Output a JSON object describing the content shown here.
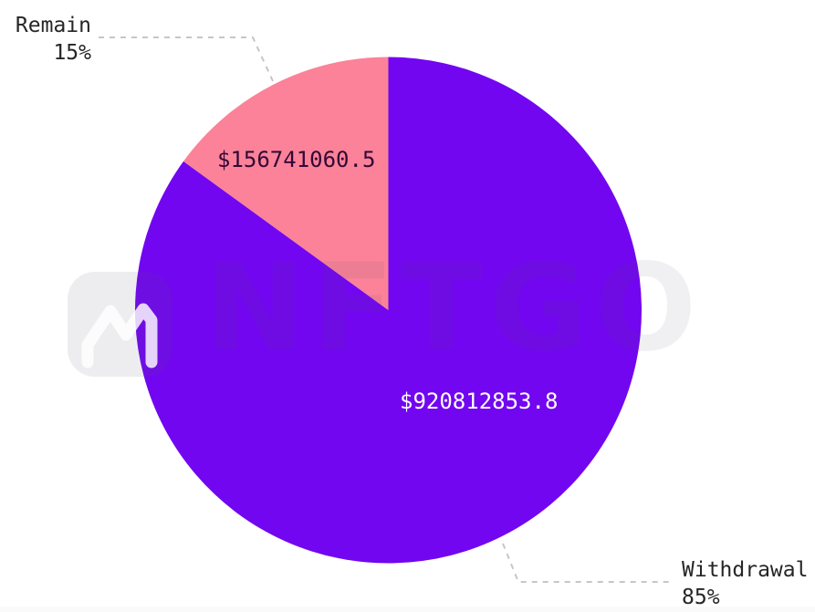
{
  "watermark": {
    "brand": "NFTGO",
    "logo_icon": "nftgo-n-icon"
  },
  "colors": {
    "background": "#FFFFFF",
    "withdrawal_slice": "#7206F0",
    "remain_slice": "#FB8298",
    "leader_line": "#C6C6C6",
    "callout_text": "#262626",
    "value_text_on_remain": "#330836",
    "value_text_on_withdrawal": "#FFFFFF"
  },
  "chart_data": {
    "type": "pie",
    "title": "",
    "start_angle": "12-oclock",
    "direction": "clockwise",
    "legend_position": "callouts-with-dashed-leader-lines",
    "slices": [
      {
        "label": "Withdrawal",
        "percent": 85,
        "percent_label": "85%",
        "value": 920812853.8,
        "value_label": "$920812853.8",
        "color": "#7206F0"
      },
      {
        "label": "Remain",
        "percent": 15,
        "percent_label": "15%",
        "value": 156741060.5,
        "value_label": "$156741060.5",
        "color": "#FB8298"
      }
    ]
  }
}
